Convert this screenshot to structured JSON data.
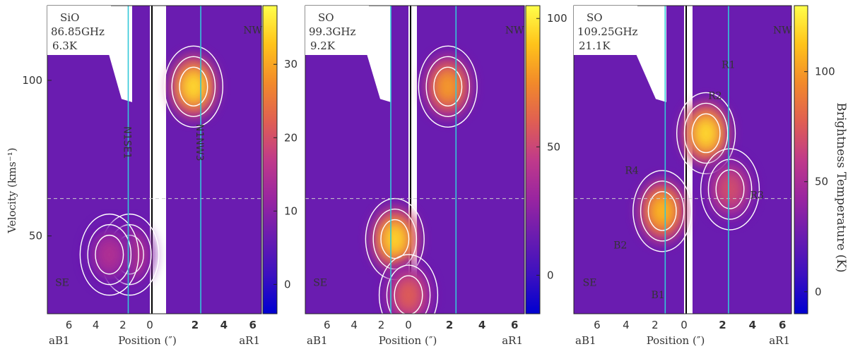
{
  "chart_data": {
    "type": "heatmap",
    "ylabel": "Velocity (kms⁻¹)",
    "yticks": [
      50,
      100
    ],
    "ylim": [
      25,
      124
    ],
    "colorbar_label": "Brightness Temperature (K)",
    "colormap": [
      "#0000d0",
      "#3c10c0",
      "#6a1cb0",
      "#9a25a0",
      "#c03a8a",
      "#e05f52",
      "#f28a2a",
      "#ffc31a",
      "#ffff4a"
    ],
    "reference_velocity": 62,
    "xtick_labels": {
      "left": [
        "6",
        "4",
        "2",
        "0"
      ],
      "right": [
        "2",
        "4",
        "6"
      ],
      "left_ticks": [
        6,
        4,
        2,
        0
      ],
      "right_ticks": [
        2,
        4,
        6
      ]
    },
    "xlabel": "Position (″)",
    "xlabel_left": "aB1",
    "xlabel_right": "aR1",
    "panels": [
      {
        "molecule": "SiO",
        "frequency": "86.85GHz",
        "energy": "6.3K",
        "colorbar_ticks": [
          0,
          10,
          20,
          30
        ],
        "colorbar_range": [
          -4,
          38
        ],
        "labels": [
          {
            "text": "NW",
            "pos": 6.0,
            "v": 115
          },
          {
            "text": "SE",
            "pos": -6.5,
            "v": 34
          }
        ],
        "position_lines": [
          {
            "name": "N1SE1",
            "pos": -1.6
          },
          {
            "name": "N1NW3",
            "pos": 2.4
          }
        ],
        "emission_peaks": [
          {
            "pos": 1.9,
            "v": 98,
            "T": 35
          },
          {
            "pos": -1.5,
            "v": 44,
            "T": 18
          },
          {
            "pos": -3.0,
            "v": 44,
            "T": 15
          }
        ]
      },
      {
        "molecule": "SO",
        "frequency": "99.3GHz",
        "energy": "9.2K",
        "colorbar_ticks": [
          0,
          50,
          100
        ],
        "colorbar_range": [
          -15,
          105
        ],
        "labels": [
          {
            "text": "NW",
            "pos": 6.0,
            "v": 115
          },
          {
            "text": "SE",
            "pos": -6.5,
            "v": 34
          }
        ],
        "position_lines": [
          {
            "name": "",
            "pos": -1.3
          },
          {
            "name": "",
            "pos": 2.4
          }
        ],
        "emission_peaks": [
          {
            "pos": 1.9,
            "v": 98,
            "T": 80
          },
          {
            "pos": -1.0,
            "v": 49,
            "T": 95
          },
          {
            "pos": 0.0,
            "v": 31,
            "T": 60
          }
        ]
      },
      {
        "molecule": "SO",
        "frequency": "109.25GHz",
        "energy": "21.1K",
        "colorbar_ticks": [
          0,
          50,
          100
        ],
        "colorbar_range": [
          -10,
          130
        ],
        "labels": [
          {
            "text": "NW",
            "pos": 6.0,
            "v": 115
          },
          {
            "text": "SE",
            "pos": -6.5,
            "v": 34
          },
          {
            "text": "R1",
            "pos": 2.4,
            "v": 104
          },
          {
            "text": "R2",
            "pos": 1.5,
            "v": 94
          },
          {
            "text": "R3",
            "pos": 4.3,
            "v": 62
          },
          {
            "text": "R4",
            "pos": -3.6,
            "v": 70
          },
          {
            "text": "B2",
            "pos": -4.4,
            "v": 46
          },
          {
            "text": "B1",
            "pos": -1.8,
            "v": 30
          }
        ],
        "position_lines": [
          {
            "name": "",
            "pos": -1.3
          },
          {
            "name": "",
            "pos": 2.4
          }
        ],
        "emission_peaks": [
          {
            "pos": 0.9,
            "v": 83,
            "T": 120
          },
          {
            "pos": -1.5,
            "v": 58,
            "T": 110
          },
          {
            "pos": 2.5,
            "v": 65,
            "T": 70
          }
        ]
      }
    ]
  }
}
